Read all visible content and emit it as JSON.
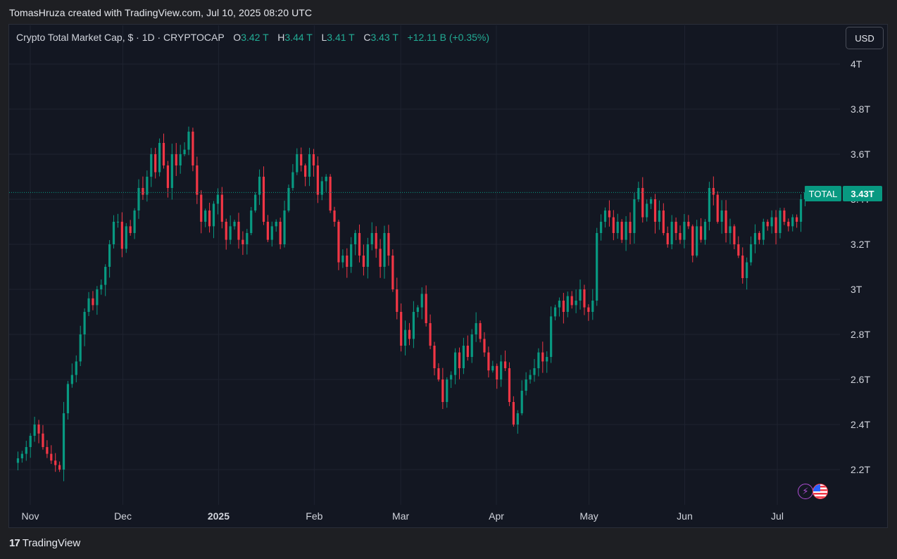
{
  "caption": "TomasHruza created with TradingView.com, Jul 10, 2025 08:20 UTC",
  "legend": {
    "name": "Crypto Total Market Cap, $ · 1D · CRYPTOCAP",
    "open_label": "O",
    "open": "3.42 T",
    "high_label": "H",
    "high": "3.44 T",
    "low_label": "L",
    "low": "3.41 T",
    "close_label": "C",
    "close": "3.43 T",
    "change": "+12.11 B (+0.35%)"
  },
  "currency_button": "USD",
  "price_tag": {
    "name": "TOTAL",
    "value": "3.43T"
  },
  "footer": {
    "brand": "TradingView",
    "mark": "17"
  },
  "icons": {
    "badge1": "lightning-bolt-icon",
    "badge2": "us-flag-icon"
  },
  "colors": {
    "up": "#089981",
    "down": "#f23645",
    "background": "#131722",
    "grid": "#1f2330"
  },
  "chart_data": {
    "type": "candlestick",
    "title": "Crypto Total Market Cap, $ · 1D · CRYPTOCAP",
    "y_unit": "T",
    "ylim": [
      2.1,
      4.0
    ],
    "y_ticks": [
      {
        "value": 4.0,
        "label": "4T"
      },
      {
        "value": 3.8,
        "label": "3.8T"
      },
      {
        "value": 3.6,
        "label": "3.6T"
      },
      {
        "value": 3.4,
        "label": "3.4T"
      },
      {
        "value": 3.2,
        "label": "3.2T"
      },
      {
        "value": 3.0,
        "label": "3T"
      },
      {
        "value": 2.8,
        "label": "2.8T"
      },
      {
        "value": 2.6,
        "label": "2.6T"
      },
      {
        "value": 2.4,
        "label": "2.4T"
      },
      {
        "value": 2.2,
        "label": "2.2T"
      }
    ],
    "x_start": "2024-10-28",
    "x_end": "2025-07-10",
    "x_ticks": [
      {
        "date": "2024-11-01",
        "label": "Nov"
      },
      {
        "date": "2024-12-01",
        "label": "Dec"
      },
      {
        "date": "2025-01-01",
        "label": "2025"
      },
      {
        "date": "2025-02-01",
        "label": "Feb"
      },
      {
        "date": "2025-03-01",
        "label": "Mar"
      },
      {
        "date": "2025-04-01",
        "label": "Apr"
      },
      {
        "date": "2025-05-01",
        "label": "May"
      },
      {
        "date": "2025-06-01",
        "label": "Jun"
      },
      {
        "date": "2025-07-01",
        "label": "Jul"
      }
    ],
    "last_price": 3.43,
    "closes": [
      2.25,
      2.27,
      2.3,
      2.35,
      2.4,
      2.36,
      2.3,
      2.27,
      2.24,
      2.22,
      2.2,
      2.45,
      2.58,
      2.62,
      2.68,
      2.8,
      2.9,
      2.96,
      2.93,
      3.0,
      3.02,
      3.1,
      3.2,
      3.3,
      3.3,
      3.18,
      3.28,
      3.25,
      3.35,
      3.45,
      3.42,
      3.5,
      3.6,
      3.52,
      3.65,
      3.55,
      3.45,
      3.6,
      3.55,
      3.6,
      3.62,
      3.7,
      3.55,
      3.42,
      3.3,
      3.35,
      3.28,
      3.38,
      3.42,
      3.3,
      3.22,
      3.28,
      3.3,
      3.22,
      3.2,
      3.25,
      3.35,
      3.42,
      3.5,
      3.3,
      3.22,
      3.28,
      3.3,
      3.2,
      3.35,
      3.45,
      3.52,
      3.6,
      3.55,
      3.5,
      3.6,
      3.55,
      3.42,
      3.48,
      3.5,
      3.35,
      3.3,
      3.12,
      3.15,
      3.1,
      3.2,
      3.25,
      3.15,
      3.1,
      3.2,
      3.25,
      3.18,
      3.1,
      3.25,
      3.15,
      3.0,
      2.9,
      2.75,
      2.82,
      2.78,
      2.9,
      2.92,
      2.98,
      2.85,
      2.75,
      2.65,
      2.6,
      2.5,
      2.6,
      2.62,
      2.72,
      2.65,
      2.75,
      2.7,
      2.8,
      2.85,
      2.78,
      2.72,
      2.64,
      2.66,
      2.6,
      2.68,
      2.65,
      2.5,
      2.4,
      2.45,
      2.55,
      2.6,
      2.62,
      2.65,
      2.72,
      2.68,
      2.7,
      2.88,
      2.92,
      2.95,
      2.9,
      2.97,
      2.93,
      2.95,
      3.0,
      2.92,
      2.9,
      2.95,
      3.25,
      3.3,
      3.35,
      3.32,
      3.25,
      3.3,
      3.22,
      3.3,
      3.25,
      3.4,
      3.45,
      3.32,
      3.38,
      3.4,
      3.3,
      3.35,
      3.25,
      3.2,
      3.3,
      3.25,
      3.22,
      3.3,
      3.28,
      3.15,
      3.28,
      3.22,
      3.3,
      3.45,
      3.42,
      3.3,
      3.35,
      3.25,
      3.28,
      3.2,
      3.15,
      3.05,
      3.12,
      3.2,
      3.25,
      3.22,
      3.3,
      3.28,
      3.32,
      3.25,
      3.35,
      3.3,
      3.28,
      3.32,
      3.3,
      3.4,
      3.43
    ]
  }
}
